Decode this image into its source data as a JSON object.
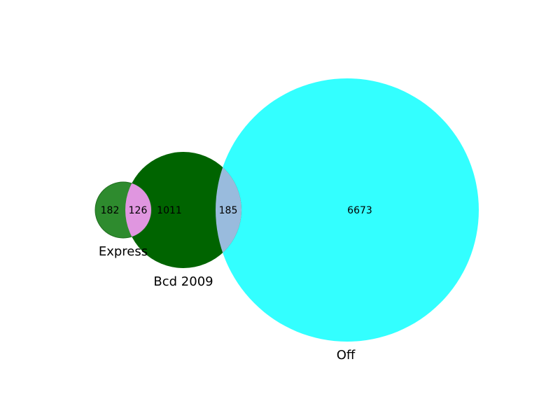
{
  "sets": [
    {
      "id": "A",
      "label": "Express",
      "size": 308,
      "color": "#2e8b2e"
    },
    {
      "id": "B",
      "label": "Bcd 2009",
      "size": 1322,
      "color": "#006400"
    },
    {
      "id": "C",
      "label": "Off",
      "size": 6858,
      "color": "#33ffff"
    }
  ],
  "regions": [
    {
      "id": "A_only",
      "label": "182"
    },
    {
      "id": "A_and_B",
      "label": "126",
      "color": "#e096e0"
    },
    {
      "id": "B_only",
      "label": "1011"
    },
    {
      "id": "B_and_C",
      "label": "185",
      "color": "#99bbdd"
    },
    {
      "id": "C_only",
      "label": "6673"
    }
  ]
}
